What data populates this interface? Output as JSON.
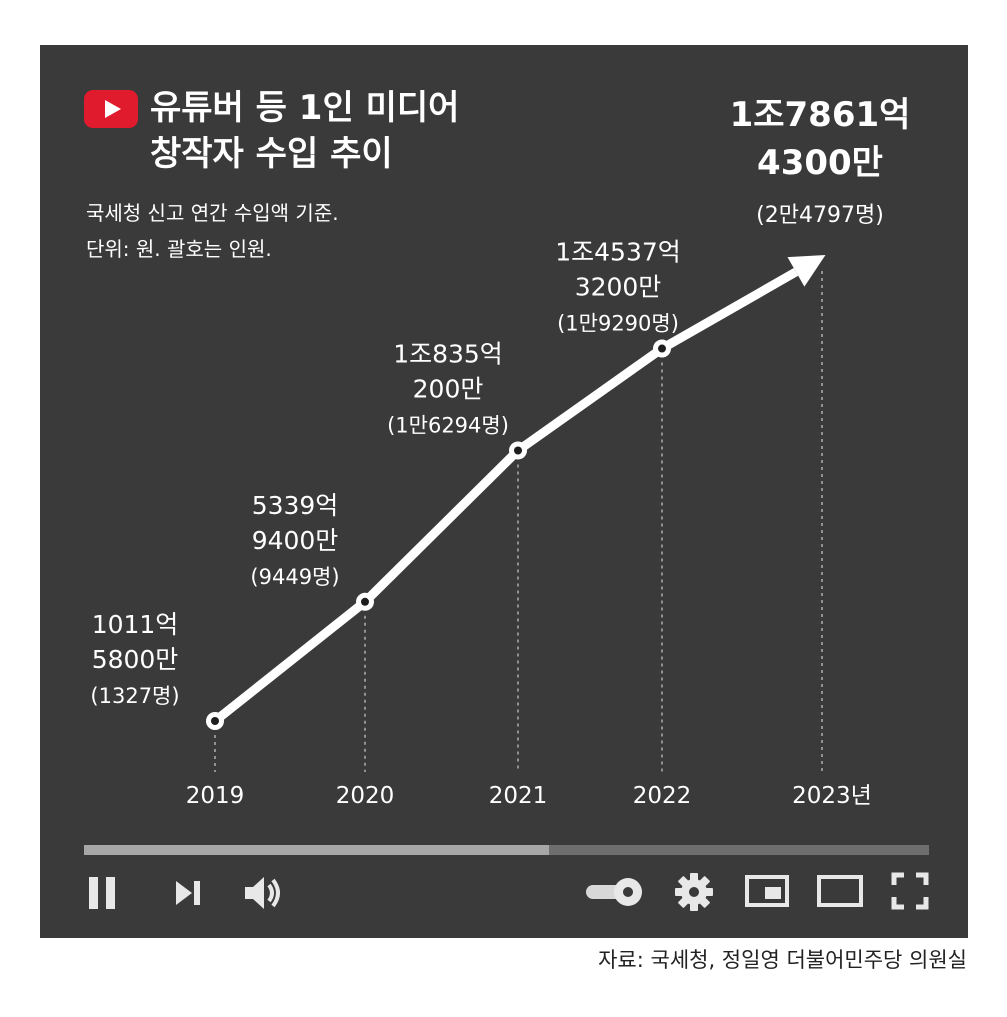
{
  "title": {
    "line1": "유튜버 등 1인 미디어",
    "line2": "창작자 수입 추이"
  },
  "subtitle": {
    "line1": "국세청 신고 연간 수입액 기준.",
    "line2": "단위: 원. 괄호는 인원."
  },
  "source": "자료: 국세청, 정일영 더불어민주당 의원실",
  "colors": {
    "panel": "#3a3a3a",
    "accent": "#e01b2e",
    "line": "#ffffff",
    "progress_fill": "#a7a7a7",
    "progress_track": "#6e6e6e"
  },
  "player": {
    "progress": 0.55,
    "icons": [
      "youtube-play-icon",
      "pause-icon",
      "skip-next-icon",
      "volume-icon",
      "autoplay-toggle-icon",
      "gear-icon",
      "miniplayer-icon",
      "theater-mode-icon",
      "fullscreen-icon"
    ]
  },
  "chart_data": {
    "type": "line",
    "title": "유튜버 등 1인 미디어 창작자 수입 추이",
    "x": [
      "2019",
      "2020",
      "2021",
      "2022",
      "2023년"
    ],
    "series": [
      {
        "values": [
          1011.58,
          5339.94,
          10835.02,
          14537.32,
          17861.43
        ]
      }
    ],
    "value_labels": [
      [
        "1011억",
        "5800만",
        "(1327명)"
      ],
      [
        "5339억",
        "9400만",
        "(9449명)"
      ],
      [
        "1조835억",
        "200만",
        "(1만6294명)"
      ],
      [
        "1조4537억",
        "3200만",
        "(1만9290명)"
      ],
      [
        "1조7861억",
        "4300만",
        "(2만4797명)"
      ]
    ],
    "people": [
      1327,
      9449,
      16294,
      19290,
      24797
    ],
    "grid": false,
    "legend": "none"
  }
}
